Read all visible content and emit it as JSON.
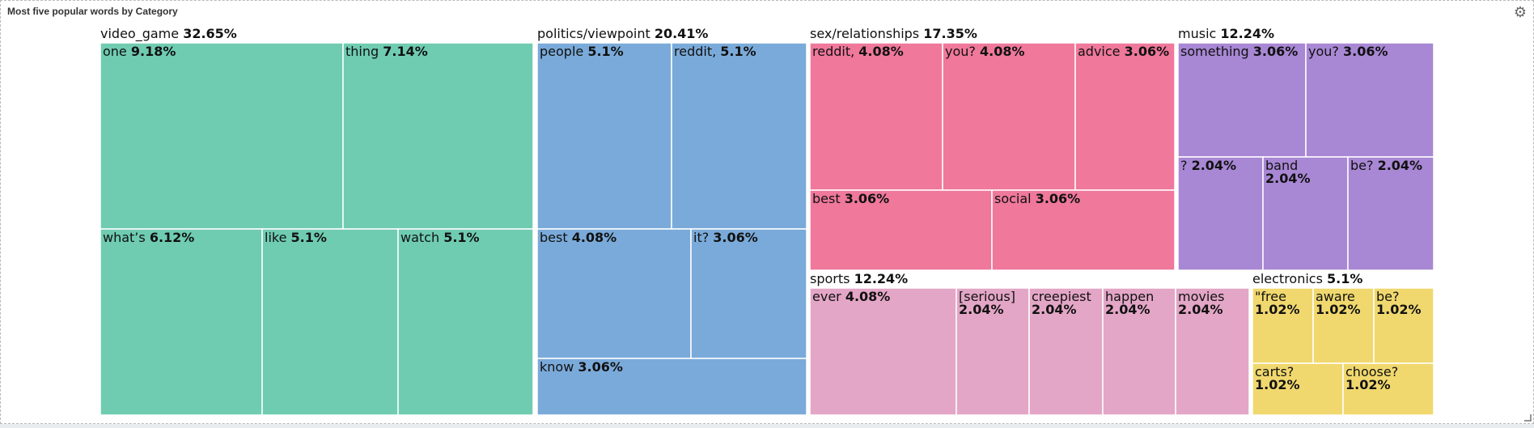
{
  "panel": {
    "title": "Most five popular words by Category",
    "settings_icon": "gear-icon"
  },
  "chart_data": {
    "type": "treemap",
    "title": "Most five popular words by Category",
    "groups": [
      {
        "name": "video_game",
        "value": "32.65%",
        "color": "#6fccb0",
        "items": [
          {
            "name": "one",
            "value": "9.18%"
          },
          {
            "name": "thing",
            "value": "7.14%"
          },
          {
            "name": "what’s",
            "value": "6.12%"
          },
          {
            "name": "like",
            "value": "5.1%"
          },
          {
            "name": "watch",
            "value": "5.1%"
          }
        ]
      },
      {
        "name": "politics/viewpoint",
        "value": "20.41%",
        "color": "#7aaad9",
        "items": [
          {
            "name": "people",
            "value": "5.1%"
          },
          {
            "name": "reddit,",
            "value": "5.1%"
          },
          {
            "name": "best",
            "value": "4.08%"
          },
          {
            "name": "it?",
            "value": "3.06%"
          },
          {
            "name": "know",
            "value": "3.06%"
          }
        ]
      },
      {
        "name": "sex/relationships",
        "value": "17.35%",
        "color": "#ef789b",
        "items": [
          {
            "name": "reddit,",
            "value": "4.08%"
          },
          {
            "name": "you?",
            "value": "4.08%"
          },
          {
            "name": "advice",
            "value": "3.06%"
          },
          {
            "name": "best",
            "value": "3.06%"
          },
          {
            "name": "social",
            "value": "3.06%"
          }
        ]
      },
      {
        "name": "music",
        "value": "12.24%",
        "color": "#a887d4",
        "items": [
          {
            "name": "something",
            "value": "3.06%"
          },
          {
            "name": "you?",
            "value": "3.06%"
          },
          {
            "name": "?",
            "value": "2.04%"
          },
          {
            "name": "band",
            "value": "2.04%"
          },
          {
            "name": "be?",
            "value": "2.04%"
          }
        ]
      },
      {
        "name": "sports",
        "value": "12.24%",
        "color": "#e3a6c6",
        "items": [
          {
            "name": "ever",
            "value": "4.08%"
          },
          {
            "name": "[serious]",
            "value": "2.04%"
          },
          {
            "name": "creepiest",
            "value": "2.04%"
          },
          {
            "name": "happen",
            "value": "2.04%"
          },
          {
            "name": "movies",
            "value": "2.04%"
          }
        ]
      },
      {
        "name": "electronics",
        "value": "5.1%",
        "color": "#f0d86e",
        "items": [
          {
            "name": "\"free",
            "value": "1.02%"
          },
          {
            "name": "aware",
            "value": "1.02%"
          },
          {
            "name": "be?",
            "value": "1.02%"
          },
          {
            "name": "carts?",
            "value": "1.02%"
          },
          {
            "name": "choose?",
            "value": "1.02%"
          }
        ]
      }
    ]
  }
}
